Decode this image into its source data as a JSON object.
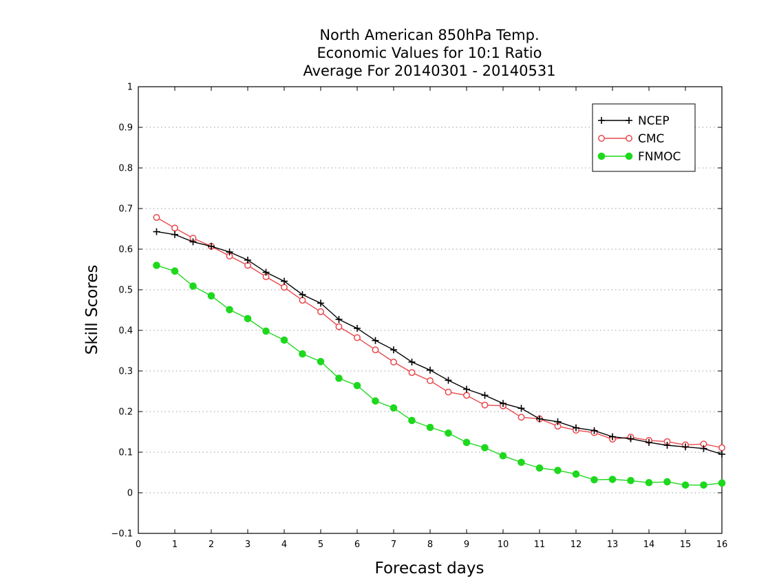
{
  "chart_data": {
    "type": "line",
    "title": [
      "North American 850hPa Temp.",
      "Economic Values for 10:1 Ratio",
      "Average For 20140301 - 20140531"
    ],
    "xlabel": "Forecast days",
    "ylabel": "Skill Scores",
    "xlim": [
      0,
      16
    ],
    "ylim": [
      -0.1,
      1
    ],
    "xticks": [
      0,
      1,
      2,
      3,
      4,
      5,
      6,
      7,
      8,
      9,
      10,
      11,
      12,
      13,
      14,
      15,
      16
    ],
    "yticks": [
      -0.1,
      0,
      0.1,
      0.2,
      0.3,
      0.4,
      0.5,
      0.6,
      0.7,
      0.8,
      0.9,
      1
    ],
    "ytick_labels": [
      "−0.1",
      "0",
      "0.1",
      "0.2",
      "0.3",
      "0.4",
      "0.5",
      "0.6",
      "0.7",
      "0.8",
      "0.9",
      "1"
    ],
    "grid": "dotted horizontal",
    "legend_position": "top-right",
    "x": [
      0.5,
      1,
      1.5,
      2,
      2.5,
      3,
      3.5,
      4,
      4.5,
      5,
      5.5,
      6,
      6.5,
      7,
      7.5,
      8,
      8.5,
      9,
      9.5,
      10,
      10.5,
      11,
      11.5,
      12,
      12.5,
      13,
      13.5,
      14,
      14.5,
      15,
      15.5,
      16
    ],
    "series": [
      {
        "name": "NCEP",
        "color": "#000000",
        "marker": "plus",
        "values": [
          0.643,
          0.636,
          0.618,
          0.607,
          0.593,
          0.573,
          0.543,
          0.521,
          0.488,
          0.467,
          0.427,
          0.405,
          0.375,
          0.352,
          0.322,
          0.302,
          0.277,
          0.255,
          0.24,
          0.22,
          0.208,
          0.182,
          0.175,
          0.16,
          0.153,
          0.138,
          0.133,
          0.124,
          0.117,
          0.113,
          0.109,
          0.095
        ]
      },
      {
        "name": "CMC",
        "color": "#e8474c",
        "marker": "open-circle",
        "values": [
          0.678,
          0.652,
          0.627,
          0.607,
          0.583,
          0.56,
          0.532,
          0.506,
          0.474,
          0.446,
          0.409,
          0.382,
          0.352,
          0.322,
          0.296,
          0.276,
          0.248,
          0.24,
          0.216,
          0.214,
          0.186,
          0.182,
          0.164,
          0.154,
          0.148,
          0.132,
          0.137,
          0.129,
          0.126,
          0.118,
          0.12,
          0.111
        ]
      },
      {
        "name": "FNMOC",
        "color": "#1ed81e",
        "marker": "filled-circle",
        "values": [
          0.56,
          0.546,
          0.509,
          0.485,
          0.451,
          0.429,
          0.398,
          0.376,
          0.342,
          0.323,
          0.282,
          0.264,
          0.226,
          0.209,
          0.178,
          0.161,
          0.147,
          0.124,
          0.111,
          0.091,
          0.075,
          0.061,
          0.055,
          0.046,
          0.032,
          0.033,
          0.03,
          0.025,
          0.027,
          0.019,
          0.019,
          0.024
        ]
      }
    ]
  }
}
